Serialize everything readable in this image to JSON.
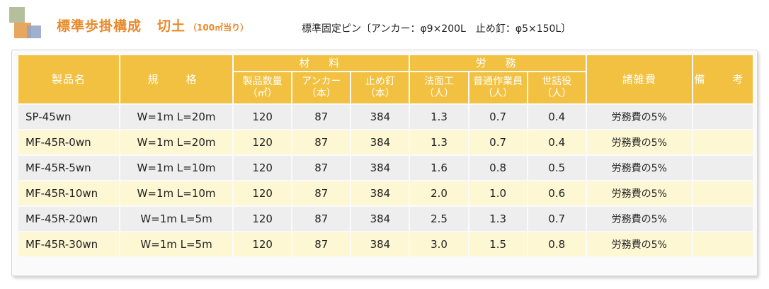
{
  "header": {
    "title": "標準歩掛構成",
    "subtitle": "切土",
    "unit": "（100㎡当り）",
    "note": "標準固定ピン〔アンカー：φ9×200L　止め釘：φ5×150L〕"
  },
  "table": {
    "columns": {
      "product": "製品名",
      "spec": "規　格",
      "materials_group": "材　料",
      "materials": [
        "製品数量",
        "アンカー",
        "止め釘"
      ],
      "materials_units": [
        "（㎡）",
        "（本）",
        "（本）"
      ],
      "labor_group": "労　務",
      "labor": [
        "法面工",
        "普通作業員",
        "世話役"
      ],
      "labor_units": [
        "（人）",
        "（人）",
        "（人）"
      ],
      "misc": "諸雑費",
      "remarks": "備　考"
    },
    "rows": [
      {
        "product": "SP-45wn",
        "spec": "W=1m  L=20m",
        "qty": "120",
        "anchor": "87",
        "nail": "384",
        "slope": "1.3",
        "worker": "0.7",
        "foreman": "0.4",
        "misc": "労務費の5%",
        "remarks": ""
      },
      {
        "product": "MF-45R-0wn",
        "spec": "W=1m  L=20m",
        "qty": "120",
        "anchor": "87",
        "nail": "384",
        "slope": "1.3",
        "worker": "0.7",
        "foreman": "0.4",
        "misc": "労務費の5%",
        "remarks": ""
      },
      {
        "product": "MF-45R-5wn",
        "spec": "W=1m  L=10m",
        "qty": "120",
        "anchor": "87",
        "nail": "384",
        "slope": "1.6",
        "worker": "0.8",
        "foreman": "0.5",
        "misc": "労務費の5%",
        "remarks": ""
      },
      {
        "product": "MF-45R-10wn",
        "spec": "W=1m  L=10m",
        "qty": "120",
        "anchor": "87",
        "nail": "384",
        "slope": "2.0",
        "worker": "1.0",
        "foreman": "0.6",
        "misc": "労務費の5%",
        "remarks": ""
      },
      {
        "product": "MF-45R-20wn",
        "spec": "W=1m  L=5m",
        "qty": "120",
        "anchor": "87",
        "nail": "384",
        "slope": "2.5",
        "worker": "1.3",
        "foreman": "0.7",
        "misc": "労務費の5%",
        "remarks": ""
      },
      {
        "product": "MF-45R-30wn",
        "spec": "W=1m  L=5m",
        "qty": "120",
        "anchor": "87",
        "nail": "384",
        "slope": "3.0",
        "worker": "1.5",
        "foreman": "0.8",
        "misc": "労務費の5%",
        "remarks": ""
      }
    ]
  },
  "colors": {
    "header_bg": "#f2c141",
    "title": "#e8892a",
    "row_gray": "#eeeeee",
    "row_yellow": "#fdf7d3"
  }
}
